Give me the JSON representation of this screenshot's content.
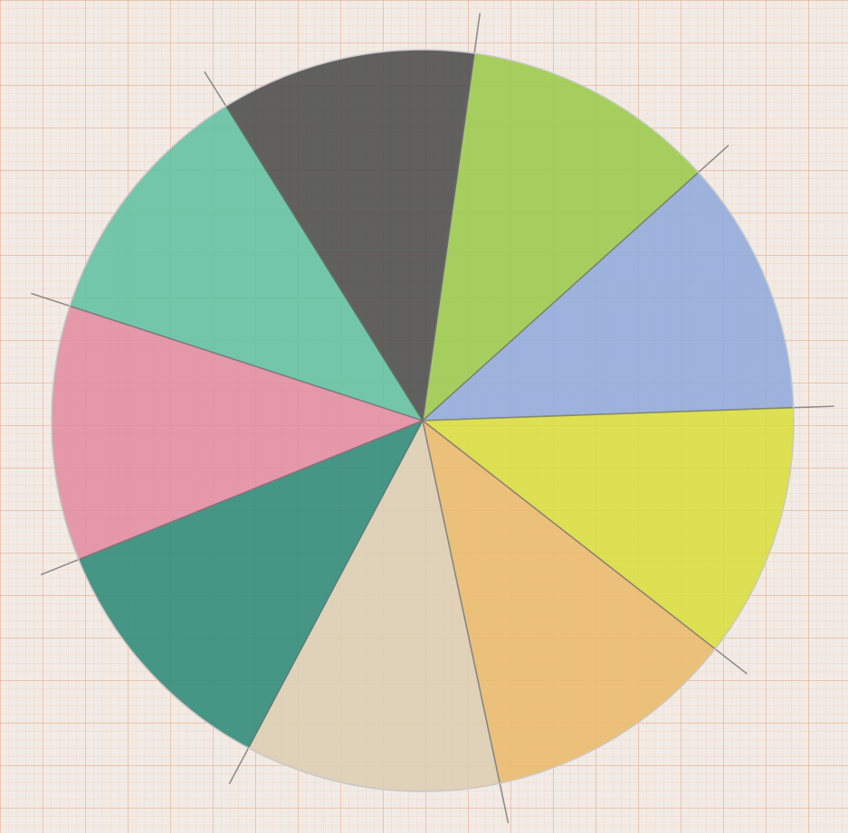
{
  "chart_data": {
    "type": "pie",
    "values": [
      40,
      40,
      40,
      40,
      40,
      40,
      40,
      40,
      40
    ],
    "colors": [
      "#9ccb4c",
      "#92abdb",
      "#d9df3e",
      "#ebbb6c",
      "#ddcfb3",
      "#2f8b79",
      "#e38da3",
      "#62c2a3",
      "#4d4d4d"
    ]
  }
}
